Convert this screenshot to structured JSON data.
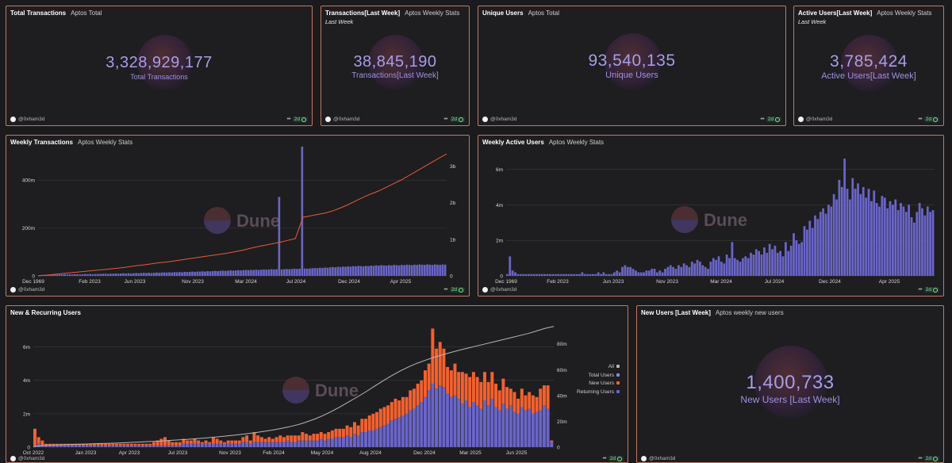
{
  "colors": {
    "accent_purple": "#6a65c8",
    "accent_orange": "#f3612f",
    "line_orange": "#ea5a36",
    "line_gray": "#b8b8b8",
    "counter_text": "#a69ee6",
    "card_border": "#c07a66"
  },
  "counters": [
    {
      "title": "Total Transactions",
      "subtitle": "Aptos Total",
      "note": "",
      "value": "3,328,929,177",
      "label": "Total Transactions",
      "author": "@0xham3d",
      "freshness": "2d"
    },
    {
      "title": "Transactions[Last Week]",
      "subtitle": "Aptos Weekly Stats",
      "note": "Last Week",
      "value": "38,845,190",
      "label": "Transactions[Last Week]",
      "author": "@0xham3d",
      "freshness": "2d"
    },
    {
      "title": "Unique Users",
      "subtitle": "Aptos Total",
      "note": "",
      "value": "93,540,135",
      "label": "Unique Users",
      "author": "@0xham3d",
      "freshness": "2d"
    },
    {
      "title": "Active Users[Last Week]",
      "subtitle": "Aptos Weekly Stats",
      "note": "Last Week",
      "value": "3,785,424",
      "label": "Active Users[Last Week]",
      "author": "@0xham3d",
      "freshness": "2d"
    },
    {
      "title": "New Users [Last Week]",
      "subtitle": "Aptos weekly new users",
      "note": "",
      "value": "1,400,733",
      "label": "New Users [Last Week]",
      "author": "@0xham3d",
      "freshness": "2d"
    }
  ],
  "watermark": "Dune",
  "chart_data": [
    {
      "id": "weekly-transactions",
      "type": "bar",
      "title": "Weekly Transactions",
      "subtitle": "Aptos Weekly Stats",
      "author": "@0xham3d",
      "freshness": "2d",
      "x_ticks": [
        "Dec 1969",
        "Feb 2023",
        "Jun 2023",
        "Nov 2023",
        "Mar 2024",
        "Jul 2024",
        "Dec 2024",
        "Apr 2025"
      ],
      "y_left_ticks": [
        "0",
        "200m",
        "400m"
      ],
      "y_right_ticks": [
        "0",
        "1b",
        "2b",
        "3b"
      ],
      "ylim_left": [
        0,
        520000000
      ],
      "ylim_right": [
        0,
        3400000000
      ],
      "series": [
        {
          "name": "",
          "kind": "bar",
          "axis": "left",
          "color": "#6a65c8",
          "values_m": [
            3,
            4,
            4,
            5,
            5,
            5,
            6,
            5,
            6,
            6,
            7,
            6,
            7,
            6,
            7,
            7,
            6,
            7,
            8,
            7,
            8,
            7,
            8,
            8,
            8,
            9,
            9,
            8,
            9,
            9,
            10,
            9,
            10,
            11,
            10,
            11,
            10,
            11,
            12,
            11,
            12,
            13,
            12,
            13,
            12,
            13,
            14,
            13,
            14,
            15,
            14,
            15,
            14,
            16,
            15,
            16,
            15,
            17,
            16,
            17,
            18,
            17,
            18,
            18,
            19,
            18,
            20,
            19,
            20,
            21,
            20,
            21,
            22,
            21,
            22,
            23,
            22,
            23,
            24,
            23,
            24,
            25,
            24,
            25,
            25,
            26,
            25,
            26,
            27,
            26,
            27,
            28,
            27,
            28,
            330,
            27,
            28,
            29,
            28,
            29,
            30,
            29,
            30,
            540,
            31,
            30,
            31,
            32,
            33,
            32,
            34,
            33,
            35,
            34,
            36,
            37,
            36,
            38,
            37,
            39,
            38,
            40,
            39,
            41,
            40,
            42,
            41,
            40,
            42,
            41,
            43,
            42,
            44,
            43,
            45,
            44,
            43,
            45,
            44,
            46,
            45,
            44,
            46,
            45,
            47,
            46,
            45,
            47,
            46,
            48,
            47,
            46,
            48,
            47,
            46,
            48,
            47,
            46,
            48,
            47
          ]
        },
        {
          "name": "",
          "kind": "line",
          "axis": "right",
          "color": "#ea5a36",
          "values_b": [
            0,
            0.02,
            0.04,
            0.06,
            0.08,
            0.1,
            0.12,
            0.14,
            0.16,
            0.18,
            0.2,
            0.22,
            0.25,
            0.28,
            0.3,
            0.33,
            0.36,
            0.38,
            0.41,
            0.44,
            0.47,
            0.5,
            0.53,
            0.56,
            0.59,
            0.62,
            0.66,
            0.7,
            0.75,
            0.8,
            0.84,
            0.88,
            0.92,
            0.97,
            1.02,
            1.6,
            1.64,
            1.68,
            1.72,
            1.78,
            1.86,
            1.95,
            2.05,
            2.15,
            2.24,
            2.32,
            2.42,
            2.52,
            2.62,
            2.74,
            2.86,
            2.98,
            3.1,
            3.22,
            3.33
          ]
        }
      ]
    },
    {
      "id": "weekly-active-users",
      "type": "bar",
      "title": "Weekly Active Users",
      "subtitle": "Aptos Weekly Stats",
      "author": "@0xham3d",
      "freshness": "2d",
      "x_ticks": [
        "Dec 1969",
        "Feb 2023",
        "Jun 2023",
        "Nov 2023",
        "Mar 2024",
        "Jul 2024",
        "Dec 2024",
        "Apr 2025"
      ],
      "y_left_ticks": [
        "0",
        "2m",
        "4m",
        "6m"
      ],
      "ylim": [
        0,
        7000000
      ],
      "series": [
        {
          "name": "",
          "kind": "bar",
          "color": "#6a65c8",
          "values_m": [
            0.1,
            1.1,
            0.3,
            0.2,
            0.1,
            0.1,
            0.1,
            0.1,
            0.1,
            0.1,
            0.1,
            0.1,
            0.1,
            0.1,
            0.1,
            0.1,
            0.1,
            0.1,
            0.1,
            0.1,
            0.1,
            0.1,
            0.1,
            0.1,
            0.1,
            0.1,
            0.1,
            0.1,
            0.2,
            0.1,
            0.1,
            0.1,
            0.1,
            0.1,
            0.2,
            0.1,
            0.2,
            0.1,
            0.1,
            0.1,
            0.2,
            0.3,
            0.2,
            0.5,
            0.6,
            0.5,
            0.5,
            0.4,
            0.3,
            0.2,
            0.2,
            0.2,
            0.3,
            0.3,
            0.4,
            0.4,
            0.2,
            0.3,
            0.2,
            0.4,
            0.5,
            0.6,
            0.5,
            0.4,
            0.6,
            0.5,
            0.7,
            0.6,
            0.5,
            0.8,
            0.7,
            0.9,
            0.8,
            0.6,
            0.5,
            0.4,
            0.8,
            1.0,
            0.9,
            1.1,
            0.8,
            0.7,
            1.2,
            1.0,
            1.9,
            1.0,
            0.9,
            0.8,
            1.0,
            1.1,
            1.0,
            1.3,
            1.2,
            1.5,
            1.4,
            1.2,
            1.6,
            1.3,
            1.8,
            1.5,
            1.7,
            1.3,
            1.4,
            1.1,
            1.9,
            1.4,
            1.7,
            2.4,
            2.0,
            1.8,
            1.9,
            2.8,
            2.6,
            3.1,
            2.7,
            3.4,
            3.2,
            3.6,
            3.8,
            3.5,
            4.0,
            3.9,
            4.6,
            4.3,
            5.4,
            5.0,
            6.6,
            4.9,
            4.3,
            5.5,
            4.9,
            5.2,
            4.6,
            5.0,
            4.4,
            4.9,
            4.2,
            4.8,
            4.1,
            3.9,
            4.5,
            4.4,
            3.8,
            4.2,
            4.0,
            4.3,
            3.7,
            4.1,
            3.9,
            3.6,
            4.0,
            3.3,
            3.0,
            3.6,
            4.1,
            3.8,
            3.4,
            3.9,
            3.6,
            3.7
          ]
        }
      ]
    },
    {
      "id": "new-recurring-users",
      "type": "bar",
      "title": "New & Recurring Users",
      "subtitle": "",
      "author": "@0xham3d",
      "freshness": "2d",
      "x_ticks": [
        "Oct 2022",
        "Jan 2023",
        "Apr 2023",
        "Jul 2023",
        "Nov 2023",
        "Feb 2024",
        "May 2024",
        "Aug 2024",
        "Dec 2024",
        "Mar 2025",
        "Jun 2025"
      ],
      "y_left_ticks": [
        "0",
        "2m",
        "4m",
        "6m"
      ],
      "y_right_ticks": [
        "0",
        "20m",
        "40m",
        "60m",
        "80m"
      ],
      "ylim_left": [
        0,
        7500000
      ],
      "ylim_right": [
        0,
        97000000
      ],
      "legend": [
        "All",
        "Total Users",
        "New Users",
        "Returning Users"
      ],
      "legend_colors": [
        "#b8b8b8",
        "#8c88d8",
        "#f3612f",
        "#6a65c8"
      ],
      "series": [
        {
          "name": "Returning Users",
          "kind": "stack",
          "color": "#6a65c8",
          "values_m": [
            0.1,
            0.2,
            0.1,
            0.1,
            0.1,
            0.1,
            0.1,
            0.1,
            0.1,
            0.1,
            0.1,
            0.1,
            0.1,
            0.1,
            0.1,
            0.1,
            0.1,
            0.1,
            0.1,
            0.1,
            0.1,
            0.1,
            0.1,
            0.1,
            0.1,
            0.1,
            0.1,
            0.1,
            0.1,
            0.1,
            0.1,
            0.1,
            0.1,
            0.1,
            0.1,
            0.1,
            0.1,
            0.1,
            0.1,
            0.1,
            0.2,
            0.2,
            0.2,
            0.2,
            0.2,
            0.2,
            0.2,
            0.2,
            0.2,
            0.2,
            0.2,
            0.2,
            0.2,
            0.2,
            0.2,
            0.2,
            0.3,
            0.3,
            0.2,
            0.3,
            0.3,
            0.3,
            0.3,
            0.3,
            0.3,
            0.3,
            0.3,
            0.3,
            0.4,
            0.3,
            0.3,
            0.4,
            0.4,
            0.4,
            0.4,
            0.4,
            0.4,
            0.5,
            0.4,
            0.5,
            0.5,
            0.6,
            0.6,
            0.6,
            0.7,
            0.6,
            0.8,
            0.7,
            0.9,
            0.9,
            1.0,
            1.0,
            1.1,
            1.2,
            1.3,
            1.4,
            1.6,
            1.7,
            1.8,
            1.9,
            2.0,
            2.2,
            2.3,
            2.5,
            2.7,
            3.0,
            3.4,
            3.8,
            3.5,
            3.7,
            3.6,
            3.2,
            3.0,
            3.1,
            2.9,
            2.6,
            2.8,
            2.4,
            2.7,
            2.5,
            2.3,
            2.8,
            2.5,
            2.9,
            2.4,
            2.2,
            2.6,
            2.3,
            2.5,
            2.1,
            2.0,
            2.4,
            2.2,
            2.3,
            2.0,
            2.1,
            2.2,
            2.5,
            2.3,
            0.3
          ]
        },
        {
          "name": "New Users",
          "kind": "stack",
          "color": "#f3612f",
          "values_m": [
            1.0,
            0.4,
            0.3,
            0.1,
            0.1,
            0.1,
            0.1,
            0.1,
            0.1,
            0.1,
            0.1,
            0.1,
            0.1,
            0.1,
            0.1,
            0.1,
            0.1,
            0.1,
            0.1,
            0.1,
            0.1,
            0.1,
            0.1,
            0.1,
            0.1,
            0.1,
            0.1,
            0.1,
            0.1,
            0.1,
            0.1,
            0.1,
            0.2,
            0.3,
            0.4,
            0.5,
            0.3,
            0.2,
            0.2,
            0.2,
            0.3,
            0.2,
            0.2,
            0.3,
            0.2,
            0.1,
            0.2,
            0.1,
            0.4,
            0.3,
            0.2,
            0.1,
            0.2,
            0.2,
            0.2,
            0.2,
            0.3,
            0.4,
            0.2,
            0.6,
            0.4,
            0.3,
            0.2,
            0.3,
            0.2,
            0.3,
            0.4,
            0.3,
            0.3,
            0.4,
            0.4,
            0.3,
            0.5,
            0.4,
            0.3,
            0.4,
            0.4,
            0.4,
            0.4,
            0.4,
            0.5,
            0.5,
            0.5,
            0.5,
            0.6,
            0.6,
            0.7,
            0.6,
            0.8,
            0.8,
            0.9,
            1.0,
            1.0,
            1.1,
            1.1,
            1.1,
            1.1,
            1.2,
            1.0,
            1.1,
            1.0,
            1.2,
            1.2,
            1.3,
            1.3,
            1.6,
            1.6,
            3.3,
            2.4,
            2.6,
            2.3,
            1.6,
            1.6,
            1.9,
            1.6,
            1.9,
            1.6,
            1.8,
            1.8,
            1.7,
            1.6,
            1.7,
            1.4,
            1.6,
            1.4,
            1.2,
            1.5,
            1.3,
            1.0,
            1.2,
            0.9,
            1.1,
            0.9,
            1.0,
            1.1,
            0.9,
            1.3,
            1.2,
            1.4,
            0.1
          ]
        },
        {
          "name": "Total Users",
          "kind": "line",
          "axis": "right",
          "color": "#b8b8b8",
          "values_m": [
            0.5,
            1.2,
            1.6,
            1.8,
            2.0,
            2.2,
            2.4,
            2.6,
            2.8,
            3.0,
            3.2,
            3.5,
            3.8,
            4.1,
            4.4,
            4.8,
            5.2,
            5.6,
            6.0,
            6.5,
            7.0,
            7.6,
            8.2,
            8.9,
            9.6,
            10.4,
            11.2,
            12.2,
            13.2,
            14.4,
            15.8,
            17.4,
            19.4,
            21.8,
            24.6,
            27.8,
            31.4,
            35.2,
            39.0,
            43.0,
            47.2,
            51.4,
            55.4,
            59.0,
            62.2,
            65.0,
            67.4,
            69.6,
            71.6,
            73.4,
            75.2,
            76.8,
            78.4,
            80.0,
            81.6,
            83.2,
            84.8,
            86.4,
            88.0,
            90.0,
            92.0,
            93.5
          ]
        }
      ]
    }
  ]
}
